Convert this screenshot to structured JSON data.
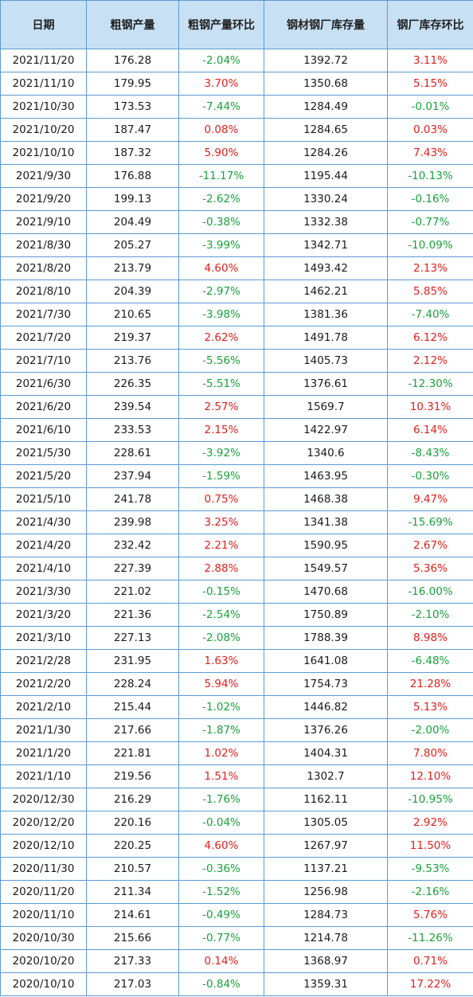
{
  "header": {
    "date": "日期",
    "crude_steel_output": "粗钢产量",
    "crude_steel_output_change": "粗钢产量环比",
    "mill_inventory": "钢材钢厂库存量",
    "mill_inventory_change": "钢厂库存环比"
  },
  "colors": {
    "header_bg": "#c8e0f4",
    "grid_line": "#5b9bd5",
    "positive": "#e0201b",
    "negative": "#18a23a"
  },
  "rows": [
    [
      "2021/11/20",
      "176.28",
      "-2.04%",
      "1392.72",
      "3.11%"
    ],
    [
      "2021/11/10",
      "179.95",
      "3.70%",
      "1350.68",
      "5.15%"
    ],
    [
      "2021/10/30",
      "173.53",
      "-7.44%",
      "1284.49",
      "-0.01%"
    ],
    [
      "2021/10/20",
      "187.47",
      "0.08%",
      "1284.65",
      "0.03%"
    ],
    [
      "2021/10/10",
      "187.32",
      "5.90%",
      "1284.26",
      "7.43%"
    ],
    [
      "2021/9/30",
      "176.88",
      "-11.17%",
      "1195.44",
      "-10.13%"
    ],
    [
      "2021/9/20",
      "199.13",
      "-2.62%",
      "1330.24",
      "-0.16%"
    ],
    [
      "2021/9/10",
      "204.49",
      "-0.38%",
      "1332.38",
      "-0.77%"
    ],
    [
      "2021/8/30",
      "205.27",
      "-3.99%",
      "1342.71",
      "-10.09%"
    ],
    [
      "2021/8/20",
      "213.79",
      "4.60%",
      "1493.42",
      "2.13%"
    ],
    [
      "2021/8/10",
      "204.39",
      "-2.97%",
      "1462.21",
      "5.85%"
    ],
    [
      "2021/7/30",
      "210.65",
      "-3.98%",
      "1381.36",
      "-7.40%"
    ],
    [
      "2021/7/20",
      "219.37",
      "2.62%",
      "1491.78",
      "6.12%"
    ],
    [
      "2021/7/10",
      "213.76",
      "-5.56%",
      "1405.73",
      "2.12%"
    ],
    [
      "2021/6/30",
      "226.35",
      "-5.51%",
      "1376.61",
      "-12.30%"
    ],
    [
      "2021/6/20",
      "239.54",
      "2.57%",
      "1569.7",
      "10.31%"
    ],
    [
      "2021/6/10",
      "233.53",
      "2.15%",
      "1422.97",
      "6.14%"
    ],
    [
      "2021/5/30",
      "228.61",
      "-3.92%",
      "1340.6",
      "-8.43%"
    ],
    [
      "2021/5/20",
      "237.94",
      "-1.59%",
      "1463.95",
      "-0.30%"
    ],
    [
      "2021/5/10",
      "241.78",
      "0.75%",
      "1468.38",
      "9.47%"
    ],
    [
      "2021/4/30",
      "239.98",
      "3.25%",
      "1341.38",
      "-15.69%"
    ],
    [
      "2021/4/20",
      "232.42",
      "2.21%",
      "1590.95",
      "2.67%"
    ],
    [
      "2021/4/10",
      "227.39",
      "2.88%",
      "1549.57",
      "5.36%"
    ],
    [
      "2021/3/30",
      "221.02",
      "-0.15%",
      "1470.68",
      "-16.00%"
    ],
    [
      "2021/3/20",
      "221.36",
      "-2.54%",
      "1750.89",
      "-2.10%"
    ],
    [
      "2021/3/10",
      "227.13",
      "-2.08%",
      "1788.39",
      "8.98%"
    ],
    [
      "2021/2/28",
      "231.95",
      "1.63%",
      "1641.08",
      "-6.48%"
    ],
    [
      "2021/2/20",
      "228.24",
      "5.94%",
      "1754.73",
      "21.28%"
    ],
    [
      "2021/2/10",
      "215.44",
      "-1.02%",
      "1446.82",
      "5.13%"
    ],
    [
      "2021/1/30",
      "217.66",
      "-1.87%",
      "1376.26",
      "-2.00%"
    ],
    [
      "2021/1/20",
      "221.81",
      "1.02%",
      "1404.31",
      "7.80%"
    ],
    [
      "2021/1/10",
      "219.56",
      "1.51%",
      "1302.7",
      "12.10%"
    ],
    [
      "2020/12/30",
      "216.29",
      "-1.76%",
      "1162.11",
      "-10.95%"
    ],
    [
      "2020/12/20",
      "220.16",
      "-0.04%",
      "1305.05",
      "2.92%"
    ],
    [
      "2020/12/10",
      "220.25",
      "4.60%",
      "1267.97",
      "11.50%"
    ],
    [
      "2020/11/30",
      "210.57",
      "-0.36%",
      "1137.21",
      "-9.53%"
    ],
    [
      "2020/11/20",
      "211.34",
      "-1.52%",
      "1256.98",
      "-2.16%"
    ],
    [
      "2020/11/10",
      "214.61",
      "-0.49%",
      "1284.73",
      "5.76%"
    ],
    [
      "2020/10/30",
      "215.66",
      "-0.77%",
      "1214.78",
      "-11.26%"
    ],
    [
      "2020/10/20",
      "217.33",
      "0.14%",
      "1368.97",
      "0.71%"
    ],
    [
      "2020/10/10",
      "217.03",
      "-0.84%",
      "1359.31",
      "17.22%"
    ]
  ]
}
